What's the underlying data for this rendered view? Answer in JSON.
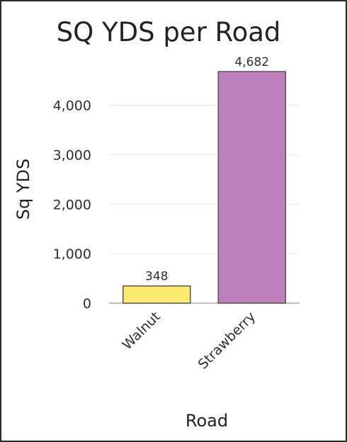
{
  "chart_data": {
    "type": "bar",
    "title": "SQ YDS per Road",
    "xlabel": "Road",
    "ylabel": "Sq YDS",
    "categories": [
      "Walnut",
      "Strawberry"
    ],
    "values": [
      348,
      4682
    ],
    "value_labels": [
      "348",
      "4,682"
    ],
    "colors": [
      "#fdeb6f",
      "#bd80bd"
    ],
    "yticks": [
      0,
      1000,
      2000,
      3000,
      4000
    ],
    "ytick_labels": [
      "0",
      "1,000",
      "2,000",
      "3,000",
      "4,000"
    ],
    "ylim": [
      0,
      4682
    ],
    "grid": true,
    "legend": "none"
  }
}
